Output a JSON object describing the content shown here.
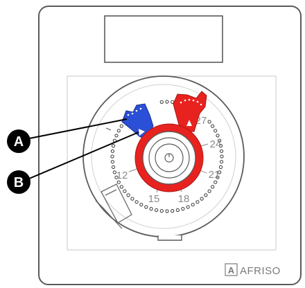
{
  "dial": {
    "scale_numbers": [
      "12",
      "15",
      "18",
      "21",
      "24",
      "27"
    ]
  },
  "callouts": {
    "a_label": "A",
    "b_label": "B"
  },
  "brand": {
    "name": "AFRISO",
    "logo_glyph": "A"
  },
  "colors": {
    "red_marker": "#e8231f",
    "blue_marker": "#2b4fd6",
    "outline": "#5a5a5a",
    "callout_fill": "#000000"
  },
  "icons": [
    "brand-logo-icon",
    "knob-center-icon"
  ]
}
